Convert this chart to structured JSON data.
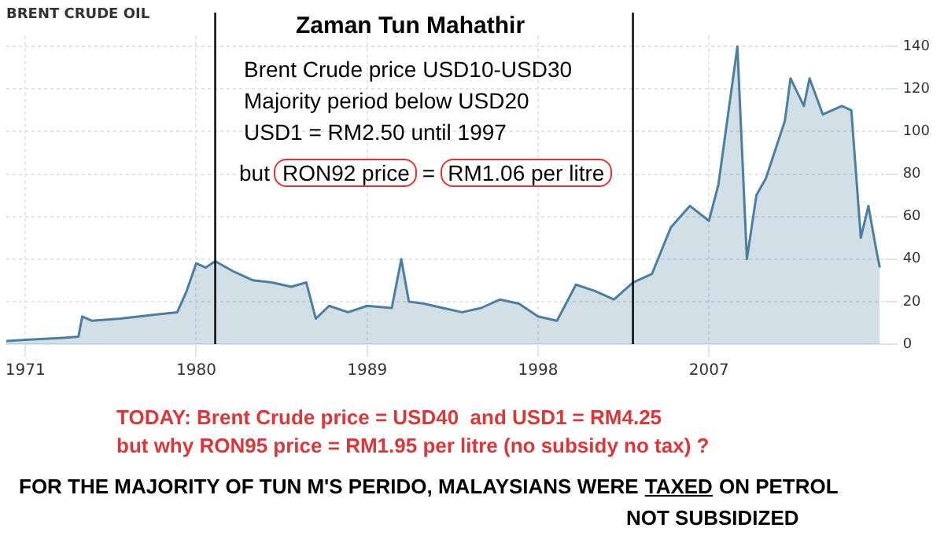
{
  "chart_data": {
    "type": "area",
    "title": "BRENT CRUDE OIL",
    "x": [
      1970,
      1971,
      1972,
      1973,
      1973.8,
      1974,
      1974.5,
      1976,
      1978,
      1979,
      1979.5,
      1980,
      1980.5,
      1981,
      1982,
      1983,
      1984,
      1985,
      1985.8,
      1986.3,
      1987,
      1988,
      1989,
      1990.3,
      1990.8,
      1991.2,
      1992,
      1993,
      1994,
      1995,
      1996,
      1997,
      1998,
      1999,
      2000,
      2001,
      2002,
      2003,
      2004,
      2005,
      2006,
      2007,
      2007.5,
      2008.5,
      2009,
      2009.5,
      2010,
      2011,
      2011.3,
      2012,
      2012.3,
      2013,
      2014,
      2014.5,
      2015,
      2015.4,
      2015.8,
      2016
    ],
    "series": [
      {
        "color": "#4a7fa0",
        "values": [
          1.5,
          2,
          2.5,
          3,
          3.5,
          13,
          11,
          12,
          14,
          15,
          25,
          38,
          36,
          39,
          34,
          30,
          29,
          27,
          29,
          12,
          18,
          15,
          18,
          17,
          40,
          20,
          19,
          17,
          15,
          17,
          21,
          19,
          13,
          11,
          28,
          25,
          21,
          29,
          33,
          55,
          65,
          58,
          75,
          140,
          40,
          70,
          78,
          105,
          125,
          112,
          125,
          108,
          112,
          110,
          50,
          65,
          45,
          36
        ]
      }
    ],
    "xlim": [
      1970,
      2016.3
    ],
    "xticks": [
      1971,
      1980,
      1989,
      1998,
      2007
    ],
    "ylim": [
      0,
      145
    ],
    "yticks": [
      0,
      20,
      40,
      60,
      80,
      100,
      120,
      140
    ],
    "grid": true,
    "legend": false,
    "ref_lines": [
      {
        "axis": "x",
        "value": 1981,
        "color": "#000000"
      },
      {
        "axis": "x",
        "value": 2003,
        "color": "#000000"
      }
    ],
    "annotations": [
      "Zaman Tun Mahathir",
      "Brent Crude price USD10-USD30",
      "Majority period below USD20",
      "USD1 = RM2.50 until 1997",
      "but",
      "RON92 price",
      "=",
      "RM1.06 per litre",
      "TODAY: Brent Crude price = USD40  and USD1 = RM4.25",
      "but why RON95 price = RM1.95 per litre (no subsidy no tax) ?",
      "FOR THE MAJORITY OF TUN M'S PERIDO, MALAYSIANS WERE",
      "TAXED",
      "ON PETROL",
      "NOT SUBSIDIZED"
    ]
  }
}
